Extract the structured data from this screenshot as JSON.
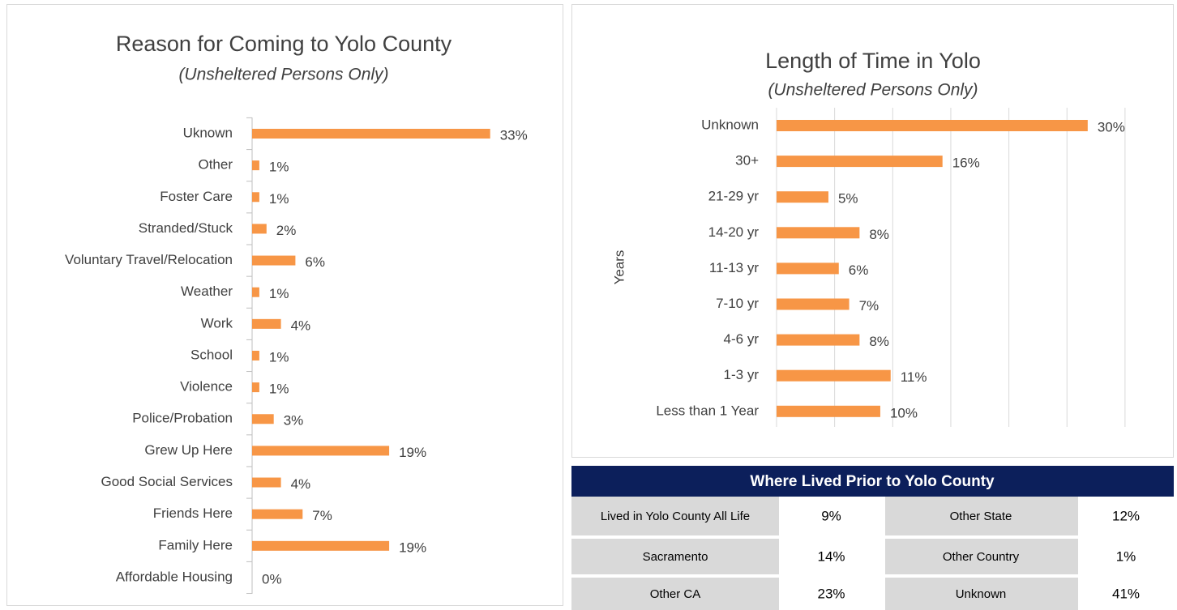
{
  "chart_data": [
    {
      "type": "hbar",
      "title": "Reason for Coming to Yolo County",
      "subtitle": "(Unsheltered Persons Only)",
      "categories": [
        "Uknown",
        "Other",
        "Foster Care",
        "Stranded/Stuck",
        "Voluntary Travel/Relocation",
        "Weather",
        "Work",
        "School",
        "Violence",
        "Police/Probation",
        "Grew Up Here",
        "Good Social Services",
        "Friends Here",
        "Family Here",
        "Affordable Housing"
      ],
      "values": [
        33,
        1,
        1,
        2,
        6,
        1,
        4,
        1,
        1,
        3,
        19,
        4,
        7,
        19,
        0
      ],
      "value_labels": [
        "33%",
        "1%",
        "1%",
        "2%",
        "6%",
        "1%",
        "4%",
        "1%",
        "1%",
        "3%",
        "19%",
        "4%",
        "7%",
        "19%",
        "0%"
      ],
      "color": "#f79646",
      "xlim": [
        0,
        40
      ],
      "grid": false
    },
    {
      "type": "hbar",
      "title": "Length of Time in Yolo",
      "subtitle": "(Unsheltered Persons Only)",
      "y_label": "Years",
      "categories": [
        "Unknown",
        "30+",
        "21-29 yr",
        "14-20 yr",
        "11-13 yr",
        "7-10 yr",
        "4-6 yr",
        "1-3 yr",
        "Less than 1 Year"
      ],
      "values": [
        30,
        16,
        5,
        8,
        6,
        7,
        8,
        11,
        10
      ],
      "value_labels": [
        "30%",
        "16%",
        "5%",
        "8%",
        "6%",
        "7%",
        "8%",
        "11%",
        "10%"
      ],
      "color": "#f79646",
      "xlim": [
        0,
        39
      ],
      "xticks": [
        0,
        5.6,
        11.2,
        16.8,
        22.4,
        28,
        33.6
      ],
      "grid": true
    }
  ],
  "table": {
    "title": "Where Lived Prior to Yolo County",
    "rows": [
      [
        "Lived in Yolo County All Life",
        "9%",
        "Other State",
        "12%"
      ],
      [
        "Sacramento",
        "14%",
        "Other Country",
        "1%"
      ],
      [
        "Other CA",
        "23%",
        "Unknown",
        "41%"
      ]
    ]
  }
}
